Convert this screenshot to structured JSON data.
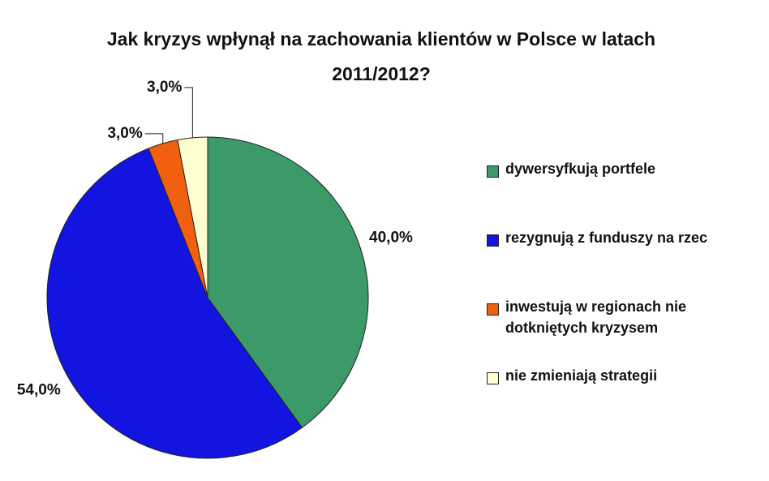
{
  "chart_data": {
    "type": "pie",
    "title": [
      "Jak kryzys wpłynął na zachowania klientów w Polsce w latach",
      "2011/2012?"
    ],
    "categories": [
      "dywersyfkują portfele",
      "rezygnują z funduszy na rzec",
      "inwestują w regionach nie dotkniętych kryzysem",
      "nie zmieniają strategii"
    ],
    "values": [
      40.0,
      54.0,
      3.0,
      3.0
    ],
    "value_labels": [
      "40,0%",
      "54,0%",
      "3,0%",
      "3,0%"
    ],
    "colors": [
      "#3c9a68",
      "#1414e0",
      "#f0600e",
      "#ffffd2"
    ],
    "legend": "right"
  }
}
